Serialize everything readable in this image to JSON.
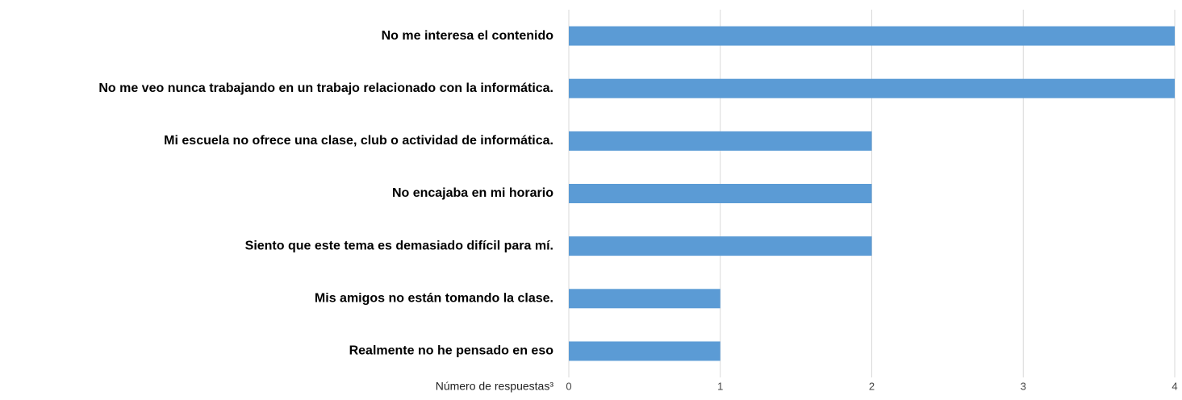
{
  "chart_data": {
    "type": "hbar",
    "categories": [
      "No me interesa el contenido",
      "No me veo nunca trabajando en un trabajo relacionado con la informática.",
      "Mi escuela no ofrece una clase, club o actividad de informática.",
      "No encajaba en mi horario",
      "Siento que este tema es demasiado difícil para mí.",
      "Mis amigos no están tomando la clase.",
      "Realmente no he pensado en eso"
    ],
    "values": [
      4,
      4,
      2,
      2,
      2,
      1,
      1
    ],
    "color": "#5b9bd5",
    "xlabel": "Número de respuestas³",
    "xlim": [
      0,
      4
    ],
    "xticks": [
      0,
      1,
      2,
      3,
      4
    ],
    "grid": true
  }
}
